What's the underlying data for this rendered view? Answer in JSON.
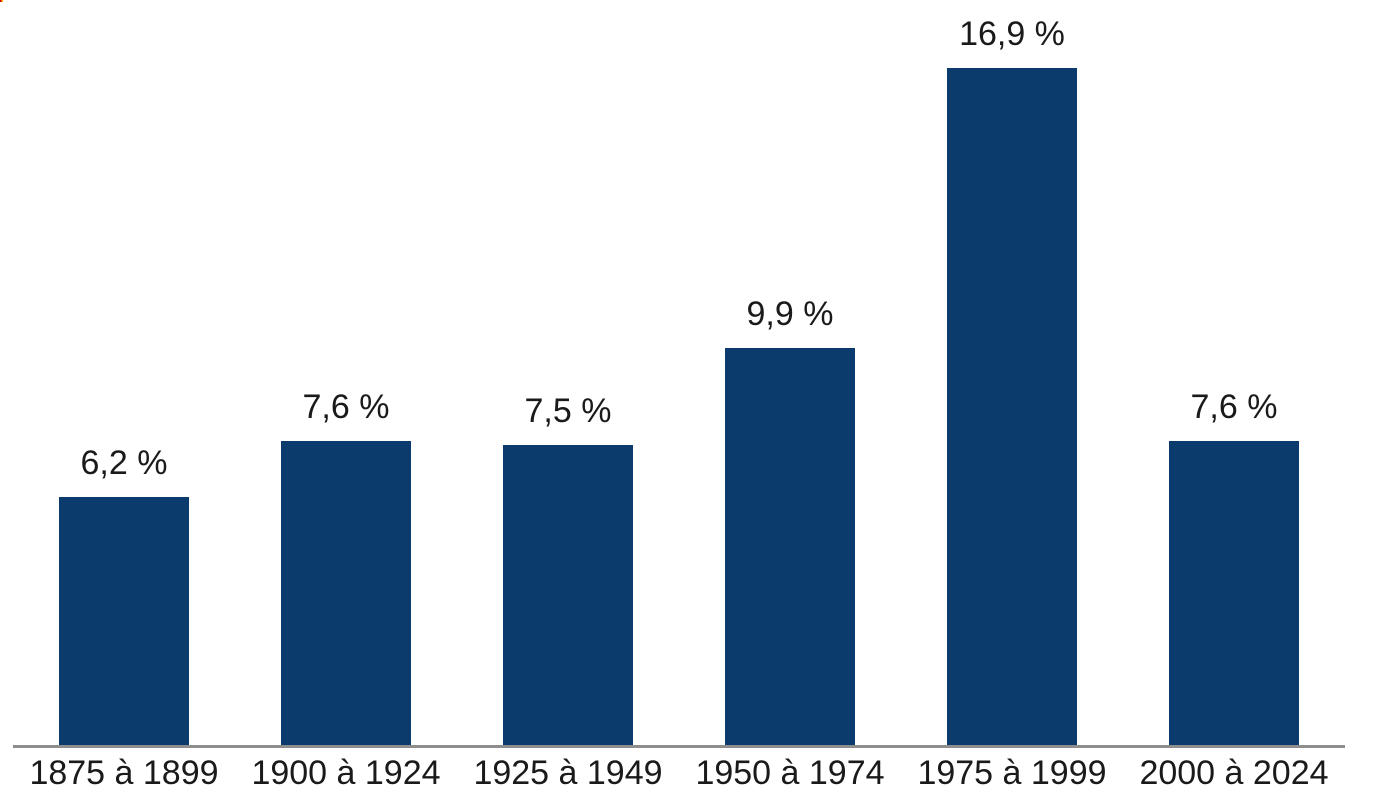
{
  "chart_data": {
    "type": "bar",
    "categories": [
      "1875 à 1899",
      "1900 à 1924",
      "1925 à 1949",
      "1950 à 1974",
      "1975 à 1999",
      "2000 à 2024"
    ],
    "values": [
      6.2,
      7.6,
      7.5,
      9.9,
      16.9,
      7.6
    ],
    "value_labels": [
      "6,2 %",
      "7,6 %",
      "7,5 %",
      "9,9 %",
      "16,9 %",
      "7,6 %"
    ],
    "title": "",
    "xlabel": "",
    "ylabel": "",
    "ylim": [
      0,
      16.9
    ],
    "grid": false,
    "legend_position": "none",
    "bar_color": "#0b3a6d",
    "axis_line_color": "#8e8e8e",
    "text_color": "#1a1a1a",
    "background_color": "#ffffff"
  },
  "decorations": {
    "corner_artifact_colors": [
      "#d40000",
      "#ffb000"
    ]
  }
}
